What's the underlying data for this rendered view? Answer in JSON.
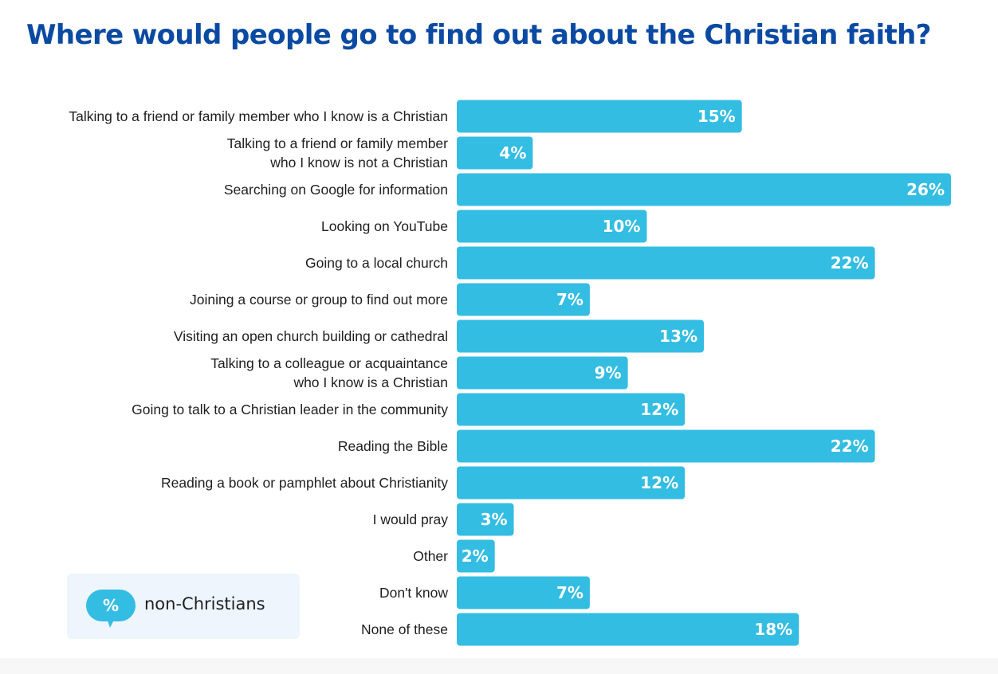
{
  "title": "Where would people go to find out about the Christian faith?",
  "colors": {
    "title": "#0b4aa2",
    "bar": "#34bde2",
    "value_text": "#ffffff",
    "legend_bg": "#eef5fc"
  },
  "legend": {
    "icon_symbol": "%",
    "label": "non-Christians",
    "icon": "speech-bubble-icon"
  },
  "chart_data": {
    "type": "bar",
    "orientation": "horizontal",
    "title": "Where would people go to find out about the Christian faith?",
    "series": [
      {
        "name": "non-Christians",
        "values": [
          15,
          4,
          26,
          10,
          22,
          7,
          13,
          9,
          12,
          22,
          12,
          3,
          2,
          7,
          18
        ]
      }
    ],
    "categories": [
      [
        "Talking to a friend or family member who I know is a Christian"
      ],
      [
        "Talking to a friend or family member",
        "who I know is not a Christian"
      ],
      [
        "Searching on Google for information"
      ],
      [
        "Looking on YouTube"
      ],
      [
        "Going to a local church"
      ],
      [
        "Joining a course or group to find out more"
      ],
      [
        "Visiting an open church building or cathedral"
      ],
      [
        "Talking to a colleague or acquaintance",
        "who I know is a Christian"
      ],
      [
        "Going to talk to a Christian leader in the community"
      ],
      [
        "Reading the Bible"
      ],
      [
        "Reading a book or pamphlet about Christianity"
      ],
      [
        "I would pray"
      ],
      [
        "Other"
      ],
      [
        "Don't know"
      ],
      [
        "None of these"
      ]
    ],
    "value_labels": [
      "15%",
      "4%",
      "26%",
      "10%",
      "22%",
      "7%",
      "13%",
      "9%",
      "12%",
      "22%",
      "12%",
      "3%",
      "2%",
      "7%",
      "18%"
    ],
    "xlim": [
      0,
      26
    ],
    "xlabel": "",
    "ylabel": "",
    "grid": false,
    "legend_position": "bottom-left"
  }
}
